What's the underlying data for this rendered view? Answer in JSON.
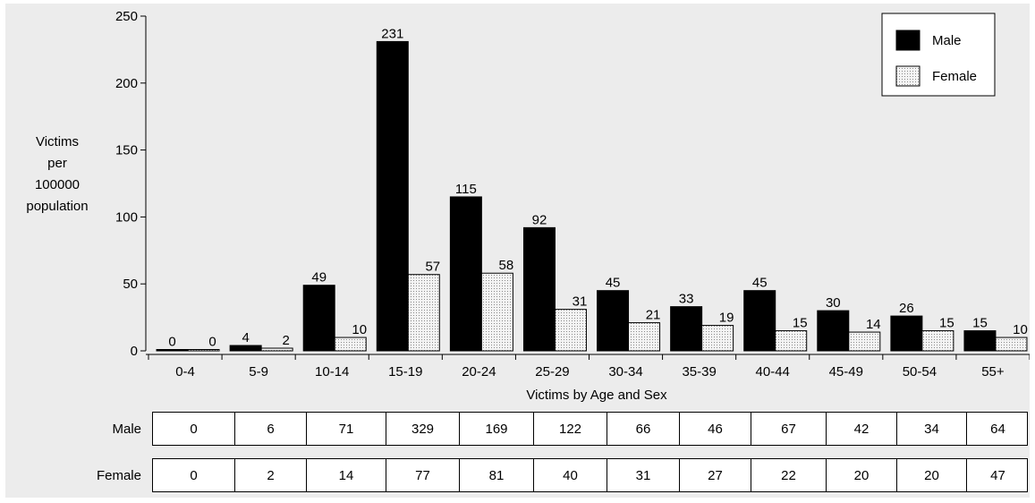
{
  "chart_data": {
    "type": "bar",
    "ylabel_lines": [
      "Victims",
      "per",
      "100000",
      "population"
    ],
    "xlabel": "Victims by Age and Sex",
    "ylim": [
      0,
      250
    ],
    "yticks": [
      0,
      50,
      100,
      150,
      200,
      250
    ],
    "categories": [
      "0-4",
      "5-9",
      "10-14",
      "15-19",
      "20-24",
      "25-29",
      "30-34",
      "35-39",
      "40-44",
      "45-49",
      "50-54",
      "55+"
    ],
    "series": [
      {
        "name": "Male",
        "values": [
          0,
          4,
          49,
          231,
          115,
          92,
          45,
          33,
          45,
          30,
          26,
          15
        ],
        "color": "#000000"
      },
      {
        "name": "Female",
        "values": [
          0,
          2,
          10,
          57,
          58,
          31,
          21,
          19,
          15,
          14,
          15,
          10
        ],
        "color": "#d8d8d8"
      }
    ],
    "legend_position": "top-right",
    "grid": false
  },
  "table": {
    "rows": [
      {
        "label": "Male",
        "values": [
          "0",
          "6",
          "71",
          "329",
          "169",
          "122",
          "66",
          "46",
          "67",
          "42",
          "34",
          "64"
        ]
      },
      {
        "label": "Female",
        "values": [
          "0",
          "2",
          "14",
          "77",
          "81",
          "40",
          "31",
          "27",
          "22",
          "20",
          "20",
          "47"
        ]
      }
    ]
  }
}
